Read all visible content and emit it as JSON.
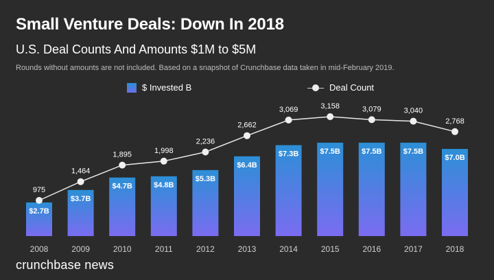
{
  "header": {
    "title": "Small Venture Deals: Down In 2018",
    "subtitle": "U.S. Deal Counts And Amounts $1M to $5M",
    "note": "Rounds without amounts are not included. Based on a snapshot of Crunchbase data taken in mid-February 2019."
  },
  "footer": {
    "brand": "crunchbase news"
  },
  "colors": {
    "background": "#2b2b2b",
    "bar_top": "#2c8fd6",
    "bar_bottom": "#7a6cf0",
    "line": "#e8e8e8",
    "dot": "#f0f0f0"
  },
  "chart_data": {
    "type": "bar",
    "categories": [
      "2008",
      "2009",
      "2010",
      "2011",
      "2012",
      "2013",
      "2014",
      "2015",
      "2016",
      "2017",
      "2018"
    ],
    "series": [
      {
        "name": "$ Invested B",
        "type": "bar",
        "values": [
          2.7,
          3.7,
          4.7,
          4.8,
          5.3,
          6.4,
          7.3,
          7.5,
          7.5,
          7.5,
          7.0
        ],
        "labels": [
          "$2.7B",
          "$3.7B",
          "$4.7B",
          "$4.8B",
          "$5.3B",
          "$6.4B",
          "$7.3B",
          "$7.5B",
          "$7.5B",
          "$7.5B",
          "$7.0B"
        ]
      },
      {
        "name": "Deal Count",
        "type": "line",
        "values": [
          975,
          1464,
          1895,
          1998,
          2236,
          2662,
          3069,
          3158,
          3079,
          3040,
          2768
        ],
        "labels": [
          "975",
          "1,464",
          "1,895",
          "1,998",
          "2,236",
          "2,662",
          "3,069",
          "3,158",
          "3,079",
          "3,040",
          "2,768"
        ]
      }
    ],
    "legend_placement": "top",
    "grid": false
  }
}
